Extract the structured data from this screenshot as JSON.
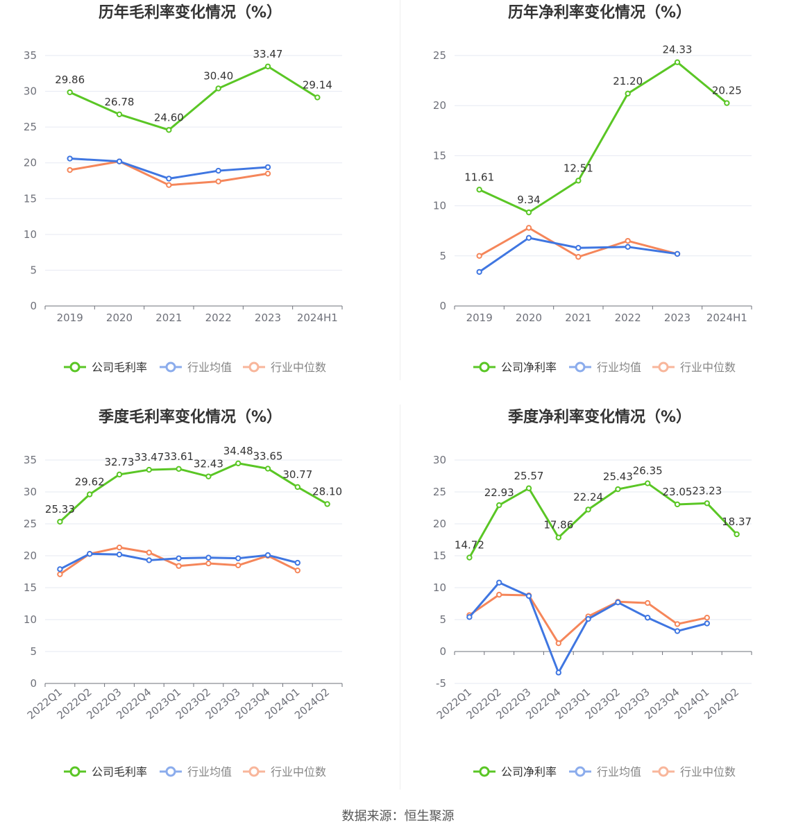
{
  "legend_labels": {
    "gross": "公司毛利率",
    "net": "公司净利率",
    "avg": "行业均值",
    "median": "行业中位数"
  },
  "colors": {
    "company": "#5ac625",
    "avg": "#3f76e1",
    "median": "#f5865a"
  },
  "source": "数据来源：恒生聚源",
  "chart_data": [
    {
      "id": "annual-gross",
      "type": "line",
      "title": "历年毛利率变化情况（%）",
      "categories": [
        "2019",
        "2020",
        "2021",
        "2022",
        "2023",
        "2024H1"
      ],
      "ylim": [
        0,
        35
      ],
      "yticks": [
        0,
        5,
        10,
        15,
        20,
        25,
        30,
        35
      ],
      "rotate_x": false,
      "series": [
        {
          "name": "公司毛利率",
          "key": "company",
          "values": [
            29.86,
            26.78,
            24.6,
            30.4,
            33.47,
            29.14
          ],
          "labels": [
            "29.86",
            "26.78",
            "24.60",
            "30.40",
            "33.47",
            "29.14"
          ]
        },
        {
          "name": "行业均值",
          "key": "avg",
          "values": [
            20.6,
            20.2,
            17.8,
            18.9,
            19.4,
            null
          ]
        },
        {
          "name": "行业中位数",
          "key": "median",
          "values": [
            19.0,
            20.2,
            16.9,
            17.4,
            18.5,
            null
          ]
        }
      ]
    },
    {
      "id": "annual-net",
      "type": "line",
      "title": "历年净利率变化情况（%）",
      "categories": [
        "2019",
        "2020",
        "2021",
        "2022",
        "2023",
        "2024H1"
      ],
      "ylim": [
        0,
        25
      ],
      "yticks": [
        0,
        5,
        10,
        15,
        20,
        25
      ],
      "rotate_x": false,
      "series": [
        {
          "name": "公司净利率",
          "key": "company",
          "values": [
            11.61,
            9.34,
            12.51,
            21.2,
            24.33,
            20.25
          ],
          "labels": [
            "11.61",
            "9.34",
            "12.51",
            "21.20",
            "24.33",
            "20.25"
          ]
        },
        {
          "name": "行业均值",
          "key": "avg",
          "values": [
            3.4,
            6.8,
            5.8,
            5.9,
            5.2,
            null
          ]
        },
        {
          "name": "行业中位数",
          "key": "median",
          "values": [
            5.0,
            7.8,
            4.9,
            6.5,
            5.2,
            null
          ]
        }
      ]
    },
    {
      "id": "quarterly-gross",
      "type": "line",
      "title": "季度毛利率变化情况（%）",
      "categories": [
        "2022Q1",
        "2022Q2",
        "2022Q3",
        "2022Q4",
        "2023Q1",
        "2023Q2",
        "2023Q3",
        "2023Q4",
        "2024Q1",
        "2024Q2"
      ],
      "ylim": [
        0,
        35
      ],
      "yticks": [
        0,
        5,
        10,
        15,
        20,
        25,
        30,
        35
      ],
      "rotate_x": true,
      "series": [
        {
          "name": "公司毛利率",
          "key": "company",
          "values": [
            25.33,
            29.62,
            32.73,
            33.47,
            33.61,
            32.43,
            34.48,
            33.65,
            30.77,
            28.1
          ],
          "labels": [
            "25.33",
            "29.62",
            "32.73",
            "33.47",
            "33.61",
            "32.43",
            "34.48",
            "33.65",
            "30.77",
            "28.10"
          ]
        },
        {
          "name": "行业均值",
          "key": "avg",
          "values": [
            17.9,
            20.3,
            20.2,
            19.3,
            19.6,
            19.7,
            19.6,
            20.1,
            18.9,
            null
          ]
        },
        {
          "name": "行业中位数",
          "key": "median",
          "values": [
            17.1,
            20.3,
            21.3,
            20.5,
            18.4,
            18.8,
            18.5,
            20.0,
            17.7,
            null
          ]
        }
      ]
    },
    {
      "id": "quarterly-net",
      "type": "line",
      "title": "季度净利率变化情况（%）",
      "categories": [
        "2022Q1",
        "2022Q2",
        "2022Q3",
        "2022Q4",
        "2023Q1",
        "2023Q2",
        "2023Q3",
        "2023Q4",
        "2024Q1",
        "2024Q2"
      ],
      "ylim": [
        -5,
        30
      ],
      "yticks": [
        -5,
        0,
        5,
        10,
        15,
        20,
        25,
        30
      ],
      "rotate_x": true,
      "series": [
        {
          "name": "公司净利率",
          "key": "company",
          "values": [
            14.72,
            22.93,
            25.57,
            17.86,
            22.24,
            25.43,
            26.35,
            23.05,
            23.23,
            18.37
          ],
          "labels": [
            "14.72",
            "22.93",
            "25.57",
            "17.86",
            "22.24",
            "25.43",
            "26.35",
            "23.05",
            "23.23",
            "18.37"
          ]
        },
        {
          "name": "行业均值",
          "key": "avg",
          "values": [
            5.4,
            10.8,
            8.7,
            -3.3,
            5.1,
            7.7,
            5.3,
            3.2,
            4.4,
            null
          ]
        },
        {
          "name": "行业中位数",
          "key": "median",
          "values": [
            5.7,
            8.9,
            8.8,
            1.3,
            5.5,
            7.8,
            7.6,
            4.3,
            5.3,
            null
          ]
        }
      ]
    }
  ]
}
